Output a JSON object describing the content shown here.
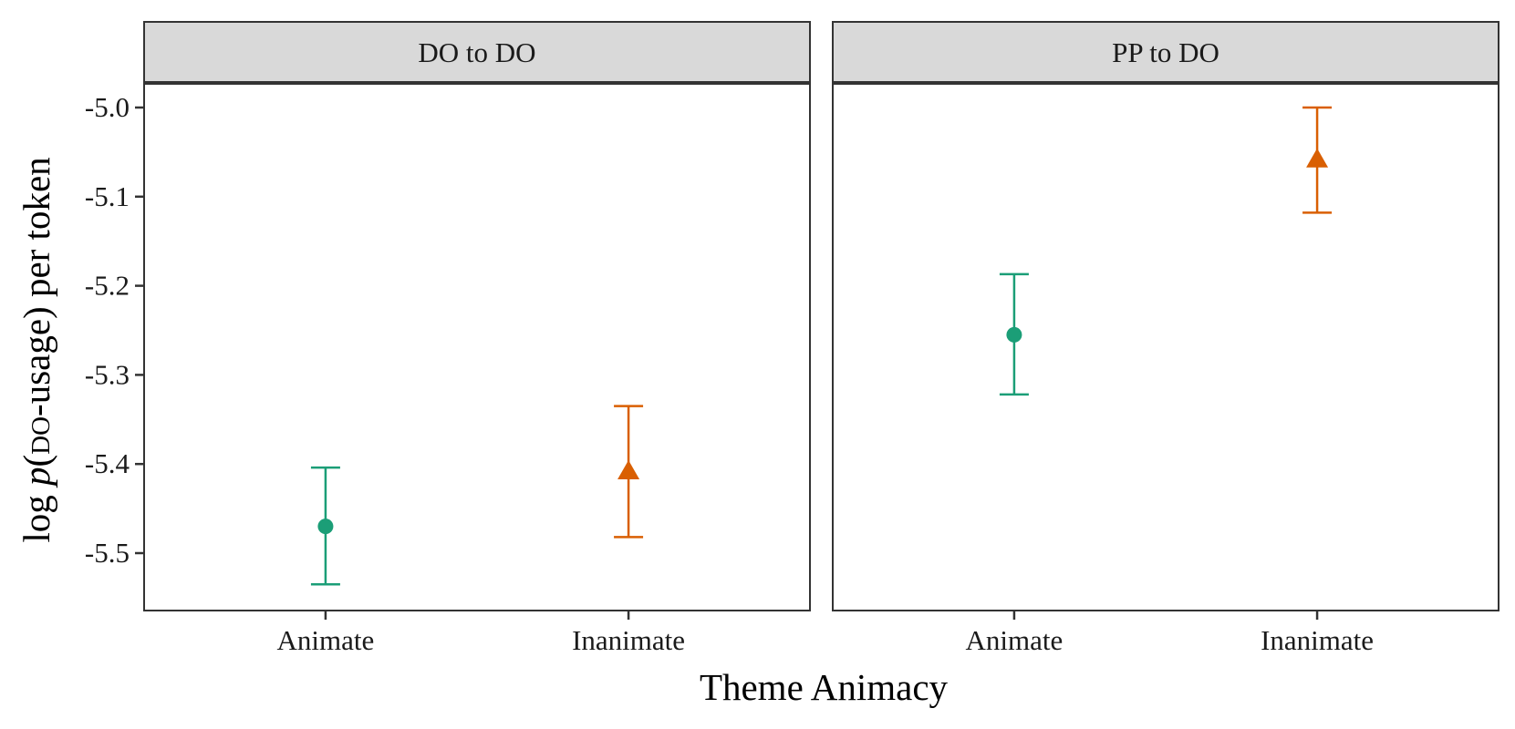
{
  "chart_data": {
    "type": "scatter",
    "xlabel": "Theme Animacy",
    "ylabel": {
      "prefix": "log ",
      "p": "p",
      "open": "(",
      "smallcaps": "do",
      "suffix": "-usage) per token"
    },
    "ylim": [
      -5.56,
      -4.98
    ],
    "yticks": [
      -5.0,
      -5.1,
      -5.2,
      -5.3,
      -5.4,
      -5.5
    ],
    "ytick_labels": [
      "-5.0",
      "-5.1",
      "-5.2",
      "-5.3",
      "-5.4",
      "-5.5"
    ],
    "categories": [
      "Animate",
      "Inanimate"
    ],
    "grid": false,
    "colors": {
      "Animate": "#1b9e77",
      "Inanimate": "#d95f02"
    },
    "markers": {
      "Animate": "circle",
      "Inanimate": "triangle"
    },
    "panels": [
      {
        "title": "DO to DO",
        "points": [
          {
            "category": "Animate",
            "y": -5.47,
            "ymin": -5.535,
            "ymax": -5.404
          },
          {
            "category": "Inanimate",
            "y": -5.408,
            "ymin": -5.482,
            "ymax": -5.335
          }
        ]
      },
      {
        "title": "PP to DO",
        "points": [
          {
            "category": "Animate",
            "y": -5.255,
            "ymin": -5.322,
            "ymax": -5.187
          },
          {
            "category": "Inanimate",
            "y": -5.058,
            "ymin": -5.118,
            "ymax": -5.0
          }
        ]
      }
    ]
  }
}
